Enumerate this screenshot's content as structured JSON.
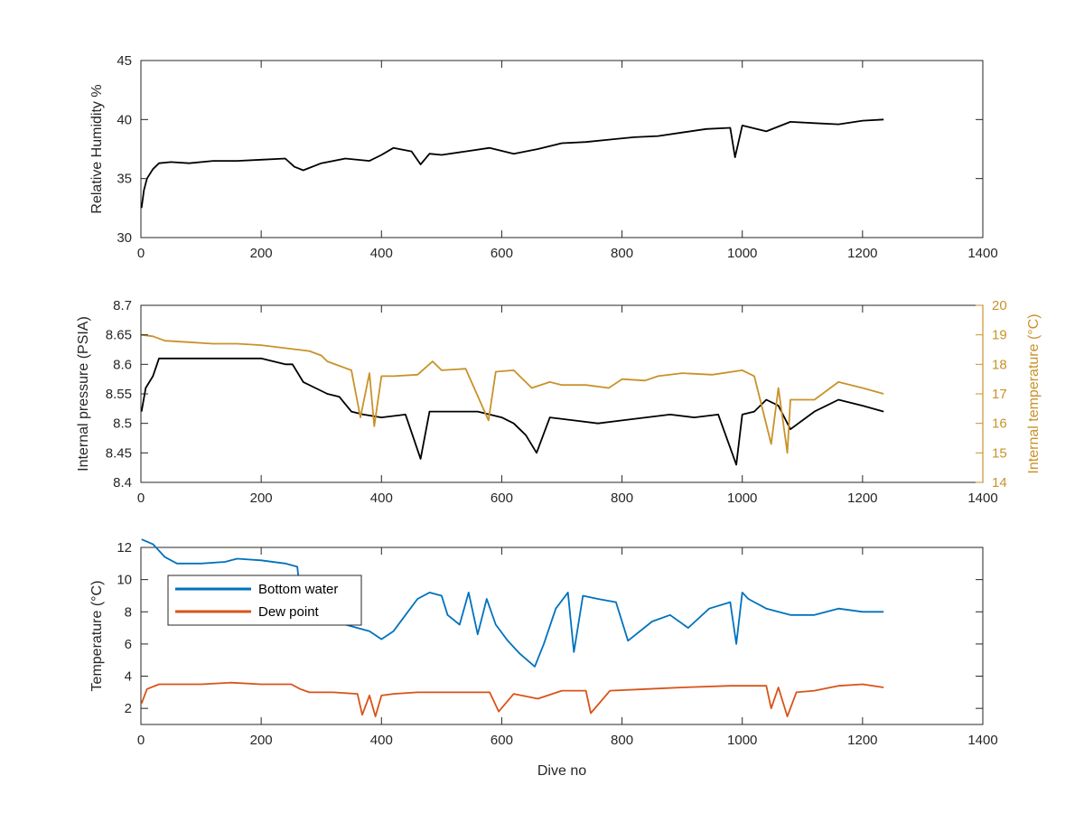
{
  "chart_data": [
    {
      "type": "line",
      "xlabel": "",
      "ylabel": "Relative Humidity %",
      "xlim": [
        0,
        1400
      ],
      "ylim": [
        30,
        45
      ],
      "xticks": [
        0,
        200,
        400,
        600,
        800,
        1000,
        1200,
        1400
      ],
      "yticks": [
        30,
        35,
        40,
        45
      ],
      "series": [
        {
          "color": "#000000",
          "x": [
            1,
            5,
            10,
            20,
            30,
            50,
            80,
            120,
            160,
            200,
            240,
            255,
            270,
            300,
            340,
            380,
            400,
            420,
            450,
            465,
            480,
            500,
            540,
            580,
            620,
            660,
            700,
            740,
            780,
            820,
            860,
            900,
            940,
            980,
            988,
            1000,
            1040,
            1080,
            1120,
            1160,
            1200,
            1235
          ],
          "y": [
            32.5,
            34.0,
            35.0,
            35.8,
            36.3,
            36.4,
            36.3,
            36.5,
            36.5,
            36.6,
            36.7,
            36.0,
            35.7,
            36.3,
            36.7,
            36.5,
            37.0,
            37.6,
            37.3,
            36.2,
            37.1,
            37.0,
            37.3,
            37.6,
            37.1,
            37.5,
            38.0,
            38.1,
            38.3,
            38.5,
            38.6,
            38.9,
            39.2,
            39.3,
            36.8,
            39.5,
            39.0,
            39.8,
            39.7,
            39.6,
            39.9,
            40.0
          ]
        }
      ]
    },
    {
      "type": "line",
      "xlabel": "",
      "ylabel": "Internal pressure (PSIA)",
      "y2label": "Internal temperature (°C)",
      "xlim": [
        0,
        1400
      ],
      "ylim": [
        8.4,
        8.7
      ],
      "y2lim": [
        14,
        20
      ],
      "xticks": [
        0,
        200,
        400,
        600,
        800,
        1000,
        1200,
        1400
      ],
      "yticks": [
        8.4,
        8.45,
        8.5,
        8.55,
        8.6,
        8.65,
        8.7
      ],
      "y2ticks": [
        14,
        15,
        16,
        17,
        18,
        19,
        20
      ],
      "series": [
        {
          "axis": "left",
          "color": "#000000",
          "x": [
            1,
            8,
            20,
            30,
            50,
            100,
            150,
            200,
            240,
            252,
            270,
            290,
            310,
            330,
            350,
            370,
            400,
            440,
            465,
            480,
            520,
            560,
            600,
            620,
            640,
            658,
            680,
            720,
            760,
            800,
            840,
            880,
            920,
            960,
            990,
            1000,
            1020,
            1040,
            1060,
            1080,
            1120,
            1160,
            1200,
            1235
          ],
          "y": [
            8.52,
            8.56,
            8.58,
            8.61,
            8.61,
            8.61,
            8.61,
            8.61,
            8.6,
            8.6,
            8.57,
            8.56,
            8.55,
            8.545,
            8.52,
            8.515,
            8.51,
            8.515,
            8.44,
            8.52,
            8.52,
            8.52,
            8.51,
            8.5,
            8.48,
            8.45,
            8.51,
            8.505,
            8.5,
            8.505,
            8.51,
            8.515,
            8.51,
            8.515,
            8.43,
            8.515,
            8.52,
            8.54,
            8.53,
            8.49,
            8.52,
            8.54,
            8.53,
            8.52
          ]
        },
        {
          "axis": "right",
          "color": "#C9922A",
          "x": [
            1,
            20,
            40,
            80,
            120,
            160,
            200,
            240,
            260,
            280,
            300,
            310,
            330,
            350,
            365,
            380,
            388,
            400,
            420,
            460,
            485,
            500,
            540,
            578,
            590,
            620,
            650,
            680,
            700,
            740,
            778,
            800,
            838,
            860,
            900,
            950,
            1000,
            1020,
            1048,
            1060,
            1075,
            1080,
            1120,
            1160,
            1200,
            1235
          ],
          "y": [
            19.0,
            18.95,
            18.8,
            18.75,
            18.7,
            18.7,
            18.65,
            18.55,
            18.5,
            18.45,
            18.3,
            18.1,
            17.95,
            17.8,
            16.2,
            17.7,
            15.9,
            17.6,
            17.6,
            17.65,
            18.1,
            17.8,
            17.85,
            16.1,
            17.75,
            17.8,
            17.2,
            17.4,
            17.3,
            17.3,
            17.2,
            17.5,
            17.45,
            17.6,
            17.7,
            17.65,
            17.8,
            17.6,
            15.3,
            17.2,
            15.0,
            16.8,
            16.8,
            17.4,
            17.2,
            17.0
          ]
        }
      ]
    },
    {
      "type": "line",
      "xlabel": "Dive no",
      "ylabel": "Temperature (°C)",
      "xlim": [
        0,
        1400
      ],
      "ylim": [
        1,
        12
      ],
      "xticks": [
        0,
        200,
        400,
        600,
        800,
        1000,
        1200,
        1400
      ],
      "yticks": [
        2,
        4,
        6,
        8,
        10,
        12
      ],
      "legend": "top-left",
      "series": [
        {
          "name": "Bottom water",
          "color": "#0072BD",
          "x": [
            1,
            20,
            40,
            60,
            100,
            140,
            160,
            200,
            240,
            260,
            270,
            280,
            300,
            340,
            360,
            380,
            400,
            420,
            440,
            460,
            480,
            500,
            510,
            530,
            545,
            560,
            575,
            590,
            610,
            630,
            655,
            670,
            690,
            710,
            720,
            735,
            760,
            790,
            810,
            850,
            880,
            910,
            945,
            980,
            990,
            1000,
            1010,
            1040,
            1080,
            1120,
            1160,
            1200,
            1235
          ],
          "y": [
            12.5,
            12.2,
            11.4,
            11.0,
            11.0,
            11.1,
            11.3,
            11.2,
            11.0,
            10.8,
            7.5,
            7.8,
            7.6,
            7.2,
            7.0,
            6.8,
            6.3,
            6.8,
            7.8,
            8.8,
            9.2,
            9.0,
            7.8,
            7.2,
            9.2,
            6.6,
            8.8,
            7.2,
            6.2,
            5.4,
            4.6,
            6.0,
            8.2,
            9.2,
            5.5,
            9.0,
            8.8,
            8.6,
            6.2,
            7.4,
            7.8,
            7.0,
            8.2,
            8.6,
            6.0,
            9.2,
            8.8,
            8.2,
            7.8,
            7.8,
            8.2,
            8.0,
            8.0
          ]
        },
        {
          "name": "Dew point",
          "color": "#D95319",
          "x": [
            1,
            10,
            30,
            60,
            100,
            150,
            200,
            250,
            265,
            280,
            320,
            360,
            368,
            380,
            390,
            400,
            420,
            460,
            500,
            540,
            580,
            595,
            620,
            660,
            700,
            740,
            748,
            780,
            840,
            900,
            980,
            1000,
            1040,
            1048,
            1060,
            1075,
            1090,
            1120,
            1160,
            1200,
            1235
          ],
          "y": [
            2.3,
            3.2,
            3.5,
            3.5,
            3.5,
            3.6,
            3.5,
            3.5,
            3.2,
            3.0,
            3.0,
            2.9,
            1.6,
            2.8,
            1.5,
            2.8,
            2.9,
            3.0,
            3.0,
            3.0,
            3.0,
            1.8,
            2.9,
            2.6,
            3.1,
            3.1,
            1.7,
            3.1,
            3.2,
            3.3,
            3.4,
            3.4,
            3.4,
            2.0,
            3.3,
            1.5,
            3.0,
            3.1,
            3.4,
            3.5,
            3.3
          ]
        }
      ]
    }
  ]
}
